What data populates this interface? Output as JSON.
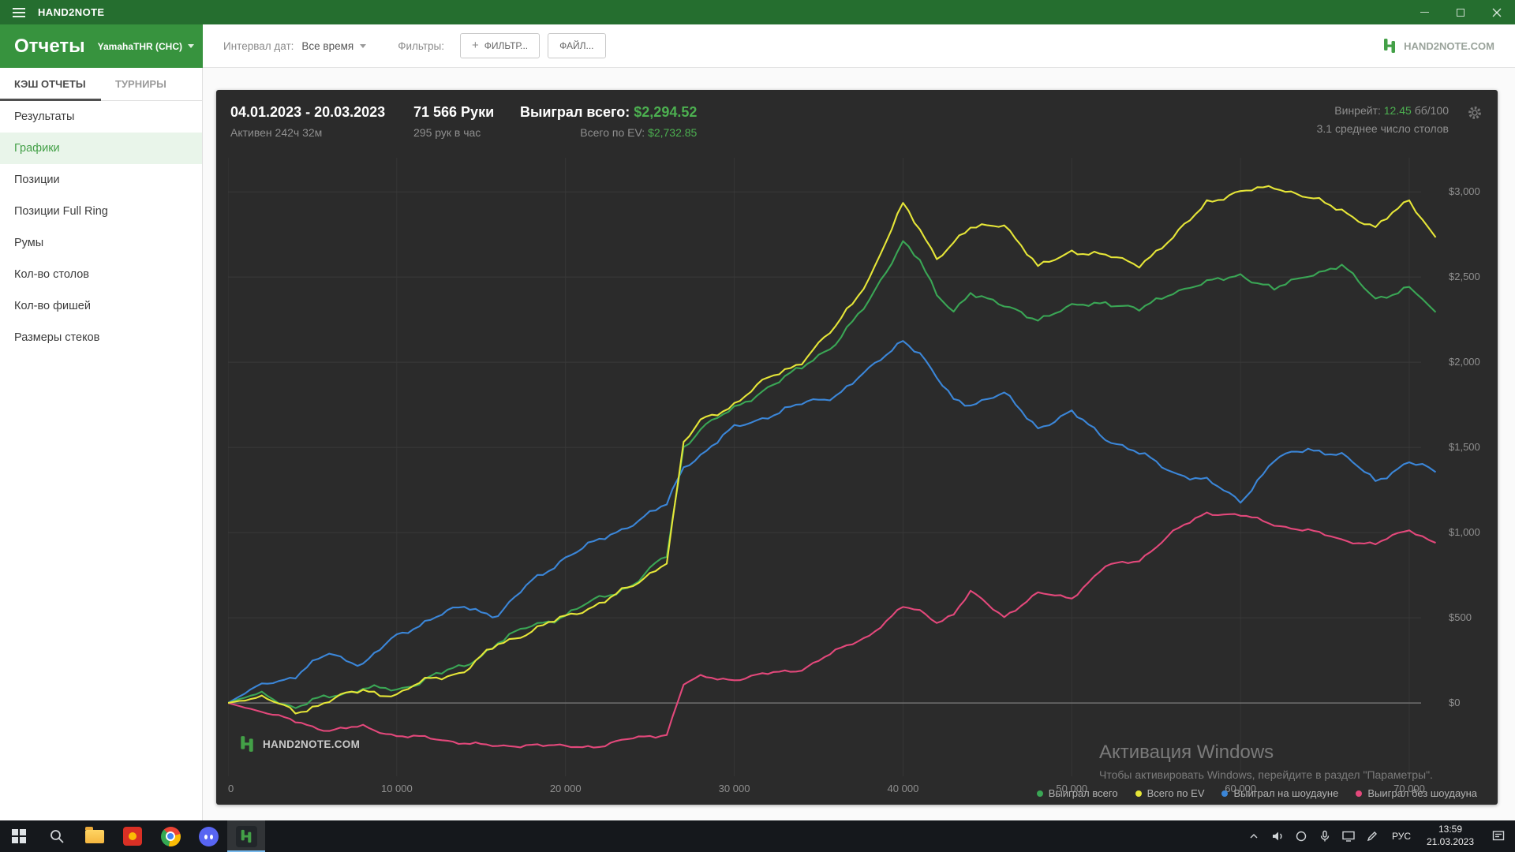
{
  "window": {
    "title": "HAND2NOTE"
  },
  "header": {
    "title": "Отчеты",
    "player": "YamahaTHR (CHC)"
  },
  "toolbar": {
    "date_interval_label": "Интервал дат:",
    "date_interval_value": "Все время",
    "filters_label": "Фильтры:",
    "filter_plus": "+",
    "filter_button": "ФИЛЬТР...",
    "file_button": "ФАЙЛ...",
    "brand": "HAND2NOTE.COM"
  },
  "sidebar": {
    "tabs": [
      {
        "label": "КЭШ ОТЧЕТЫ",
        "active": true
      },
      {
        "label": "ТУРНИРЫ",
        "active": false
      }
    ],
    "items": [
      {
        "label": "Результаты",
        "active": false
      },
      {
        "label": "Графики",
        "active": true
      },
      {
        "label": "Позиции",
        "active": false
      },
      {
        "label": "Позиции Full Ring",
        "active": false
      },
      {
        "label": "Румы",
        "active": false
      },
      {
        "label": "Кол-во столов",
        "active": false
      },
      {
        "label": "Кол-во фишей",
        "active": false
      },
      {
        "label": "Размеры стеков",
        "active": false
      }
    ]
  },
  "report": {
    "date_range": "04.01.2023 - 20.03.2023",
    "active_time": "Активен 242ч 32м",
    "hands": "71 566 Руки",
    "hands_per_hour": "295 рук в час",
    "won_label": "Выиграл всего:",
    "won_value": "$2,294.52",
    "ev_label": "Всего по EV:",
    "ev_value": "$2,732.85",
    "winrate_label": "Винрейт:",
    "winrate_value": "12.45",
    "winrate_units": "бб/100",
    "avg_tables": "3.1 среднее число столов",
    "logo_text": "HAND2NOTE.COM"
  },
  "chart_data": {
    "type": "line",
    "title": "",
    "xlabel": "",
    "ylabel": "",
    "x_axis": "hands_played",
    "x_max": 71780,
    "ylim": [
      -430,
      3200
    ],
    "grid": true,
    "legend_position": "bottom-right",
    "x_ticks": [
      {
        "value": 0,
        "label": "0"
      },
      {
        "value": 10000,
        "label": "10 000"
      },
      {
        "value": 20000,
        "label": "20 000"
      },
      {
        "value": 30000,
        "label": "30 000"
      },
      {
        "value": 40000,
        "label": "40 000"
      },
      {
        "value": 50000,
        "label": "50 000"
      },
      {
        "value": 60000,
        "label": "60 000"
      },
      {
        "value": 70000,
        "label": "70 000"
      }
    ],
    "y_ticks": [
      0,
      500,
      1000,
      1500,
      2000,
      2500,
      3000
    ],
    "y_tick_labels": [
      "$0",
      "$500",
      "$1,000",
      "$1,500",
      "$2,000",
      "$2,500",
      "$3,000"
    ],
    "x_common": [
      0,
      2000,
      4000,
      6000,
      8000,
      10000,
      12000,
      14000,
      16000,
      18000,
      20000,
      22000,
      24000,
      26000,
      27000,
      28000,
      30000,
      32000,
      34000,
      36000,
      38000,
      40000,
      41000,
      42000,
      43000,
      44000,
      46000,
      48000,
      50000,
      52000,
      54000,
      56000,
      58000,
      60000,
      62000,
      64000,
      66000,
      68000,
      70000,
      71566
    ],
    "series": [
      {
        "name": "Выиграл всего",
        "color": "#3aa655",
        "noise": 26,
        "final_value": 2294.52,
        "y": [
          0,
          60,
          -30,
          40,
          90,
          70,
          160,
          210,
          360,
          450,
          520,
          610,
          700,
          860,
          1500,
          1620,
          1720,
          1860,
          1960,
          2120,
          2350,
          2720,
          2600,
          2380,
          2300,
          2420,
          2320,
          2260,
          2320,
          2360,
          2300,
          2420,
          2460,
          2520,
          2420,
          2520,
          2560,
          2380,
          2430,
          2294
        ]
      },
      {
        "name": "Всего по EV",
        "color": "#e6e638",
        "noise": 26,
        "final_value": 2732.85,
        "y": [
          0,
          40,
          -60,
          20,
          70,
          50,
          140,
          190,
          340,
          430,
          500,
          590,
          680,
          840,
          1520,
          1650,
          1760,
          1900,
          2010,
          2200,
          2500,
          2920,
          2780,
          2620,
          2700,
          2780,
          2820,
          2550,
          2660,
          2620,
          2580,
          2720,
          2950,
          2990,
          3040,
          2960,
          2900,
          2780,
          2960,
          2733
        ]
      },
      {
        "name": "Выиграл на шоудауне",
        "color": "#3b86d8",
        "noise": 26,
        "y": [
          0,
          110,
          160,
          290,
          230,
          390,
          500,
          560,
          520,
          710,
          860,
          950,
          1060,
          1160,
          1390,
          1460,
          1610,
          1690,
          1750,
          1810,
          1950,
          2140,
          2050,
          1900,
          1780,
          1760,
          1810,
          1620,
          1700,
          1560,
          1460,
          1360,
          1300,
          1190,
          1420,
          1500,
          1450,
          1310,
          1410,
          1355
        ]
      },
      {
        "name": "Выиграл без шоудауна",
        "color": "#e3487b",
        "noise": 16,
        "y": [
          0,
          -50,
          -110,
          -160,
          -140,
          -190,
          -210,
          -230,
          -260,
          -240,
          -260,
          -250,
          -210,
          -180,
          110,
          150,
          140,
          170,
          200,
          300,
          400,
          560,
          540,
          480,
          520,
          650,
          510,
          640,
          620,
          800,
          840,
          1000,
          1120,
          1100,
          1050,
          1010,
          960,
          930,
          1020,
          940
        ]
      }
    ]
  },
  "watermark": {
    "line1": "Активация Windows",
    "line2": "Чтобы активировать Windows, перейдите в раздел \"Параметры\"."
  },
  "taskbar": {
    "language": "РУС",
    "time": "13:59",
    "date": "21.03.2023"
  }
}
